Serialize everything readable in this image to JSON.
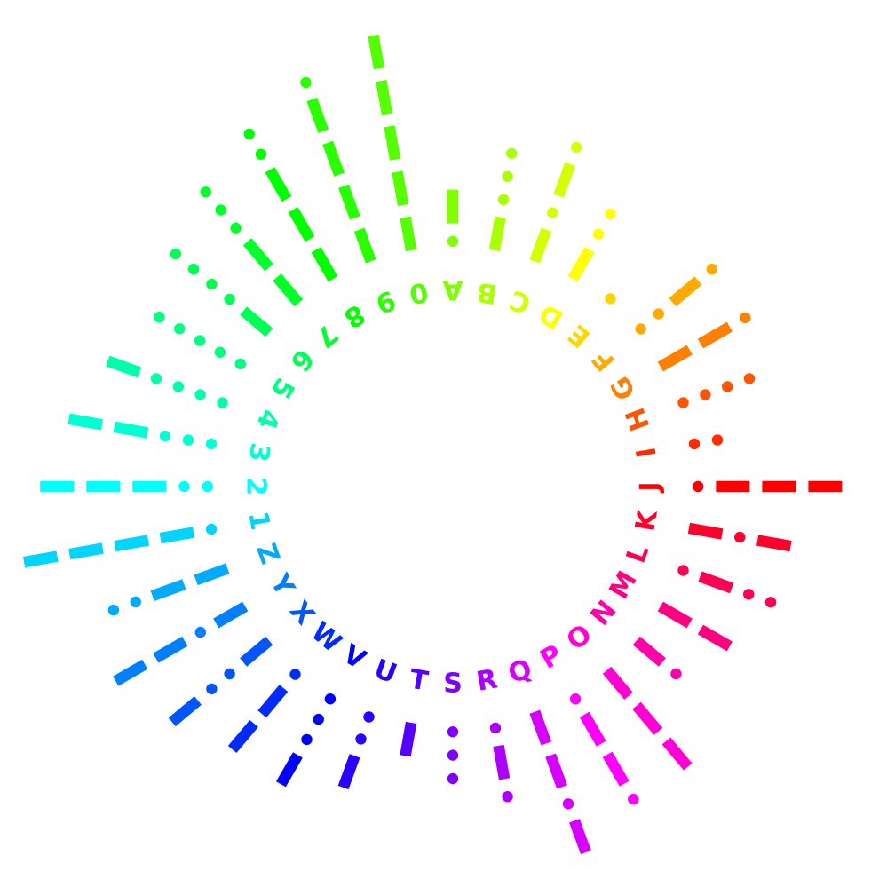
{
  "characters": [
    {
      "char": "A",
      "code": ".-"
    },
    {
      "char": "B",
      "code": "-..."
    },
    {
      "char": "C",
      "code": "-.-."
    },
    {
      "char": "D",
      "code": "-.."
    },
    {
      "char": "E",
      "code": "."
    },
    {
      "char": "F",
      "code": "..-."
    },
    {
      "char": "G",
      "code": "--."
    },
    {
      "char": "H",
      "code": "...."
    },
    {
      "char": "I",
      "code": ".."
    },
    {
      "char": "J",
      "code": ".---"
    },
    {
      "char": "K",
      "code": "-.-"
    },
    {
      "char": "L",
      "code": ".-.."
    },
    {
      "char": "M",
      "code": "--"
    },
    {
      "char": "N",
      "code": "-."
    },
    {
      "char": "O",
      "code": "---"
    },
    {
      "char": "P",
      "code": ".--."
    },
    {
      "char": "Q",
      "code": "--.-"
    },
    {
      "char": "R",
      "code": ".-."
    },
    {
      "char": "S",
      "code": "..."
    },
    {
      "char": "T",
      "code": "-"
    },
    {
      "char": "U",
      "code": "..-"
    },
    {
      "char": "V",
      "code": "...-"
    },
    {
      "char": "W",
      "code": ".--"
    },
    {
      "char": "X",
      "code": "-..-"
    },
    {
      "char": "Y",
      "code": "-.--"
    },
    {
      "char": "Z",
      "code": "--.."
    },
    {
      "char": "1",
      "code": ".----"
    },
    {
      "char": "2",
      "code": "..---"
    },
    {
      "char": "3",
      "code": "...--"
    },
    {
      "char": "4",
      "code": "....-"
    },
    {
      "char": "5",
      "code": "....."
    },
    {
      "char": "6",
      "code": "-...."
    },
    {
      "char": "7",
      "code": "--..."
    },
    {
      "char": "8",
      "code": "---.."
    },
    {
      "char": "9",
      "code": "----."
    },
    {
      "char": "0",
      "code": "-----"
    }
  ],
  "colors": {
    "background": "#ffffff",
    "palette": "rainbow hue wheel (red at J, clockwise through magenta, blue, cyan, green, yellow, orange)"
  }
}
